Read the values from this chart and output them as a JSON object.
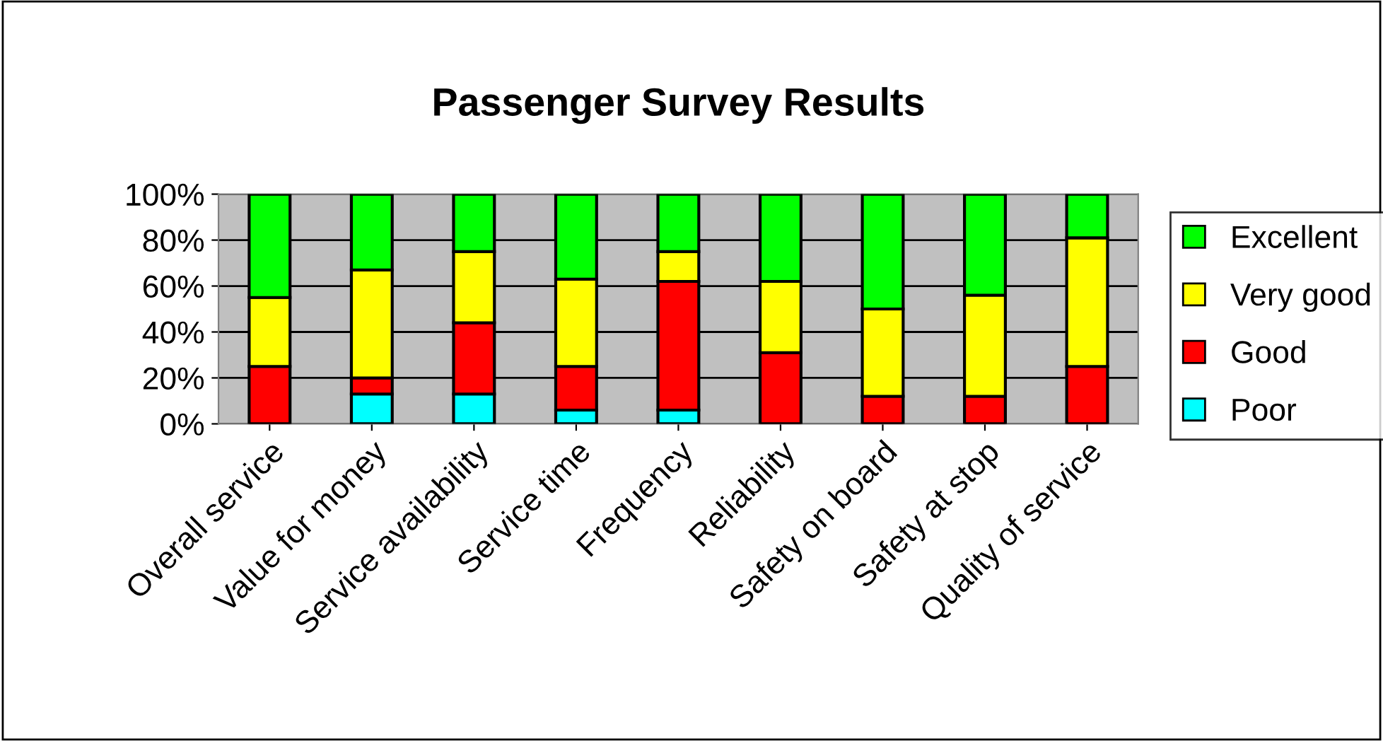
{
  "chart_data": {
    "type": "bar",
    "title": "Passenger Survey Results",
    "stacked": true,
    "categories": [
      "Overall service",
      "Value for money",
      "Service availability",
      "Service time",
      "Frequency",
      "Reliability",
      "Safety on board",
      "Safety at stop",
      "Quality of service"
    ],
    "series": [
      {
        "name": "Poor",
        "color": "#00ffff",
        "values": [
          0,
          13,
          13,
          6,
          6,
          0,
          0,
          0,
          0
        ]
      },
      {
        "name": "Good",
        "color": "#ff0000",
        "values": [
          25,
          7,
          31,
          19,
          56,
          31,
          12,
          12,
          25
        ]
      },
      {
        "name": "Very good",
        "color": "#ffff00",
        "values": [
          30,
          47,
          31,
          38,
          13,
          31,
          38,
          44,
          56
        ]
      },
      {
        "name": "Excellent",
        "color": "#00ff00",
        "values": [
          45,
          33,
          25,
          37,
          25,
          38,
          50,
          44,
          19
        ]
      }
    ],
    "ylim": [
      0,
      100
    ],
    "yticks": [
      {
        "value": 0,
        "label": "0%"
      },
      {
        "value": 20,
        "label": "20%"
      },
      {
        "value": 40,
        "label": "40%"
      },
      {
        "value": 60,
        "label": "60%"
      },
      {
        "value": 80,
        "label": "80%"
      },
      {
        "value": 100,
        "label": "100%"
      }
    ],
    "grid": "y",
    "legend": "right"
  }
}
